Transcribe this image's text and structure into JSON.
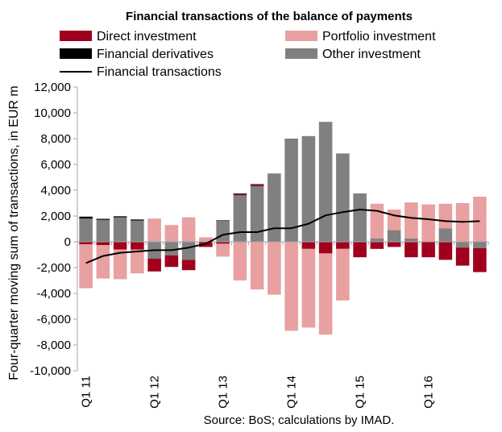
{
  "chart_data": {
    "type": "bar",
    "title": "Financial transactions of the balance of payments",
    "ylabel": "Four-quarter moving sum of transactions, in EUR m",
    "source": "Source: BoS; calculations by IMAD.",
    "ylim": [
      -10000,
      12000
    ],
    "y_ticks": [
      "12,000",
      "10,000",
      "8,000",
      "6,000",
      "4,000",
      "2,000",
      "0",
      "-2,000",
      "-4,000",
      "-6,000",
      "-8,000",
      "-10,000"
    ],
    "y_tick_values": [
      12000,
      10000,
      8000,
      6000,
      4000,
      2000,
      0,
      -2000,
      -4000,
      -6000,
      -8000,
      -10000
    ],
    "x_ticks": [
      {
        "label": "Q1 11",
        "index": 0
      },
      {
        "label": "Q1 12",
        "index": 4
      },
      {
        "label": "Q1 13",
        "index": 8
      },
      {
        "label": "Q1 14",
        "index": 12
      },
      {
        "label": "Q1 15",
        "index": 16
      },
      {
        "label": "Q1 16",
        "index": 20
      }
    ],
    "legend": [
      {
        "key": "direct",
        "label": "Direct investment",
        "kind": "box"
      },
      {
        "key": "portfolio",
        "label": "Portfolio investment",
        "kind": "box"
      },
      {
        "key": "derivatives",
        "label": "Financial derivatives",
        "kind": "box"
      },
      {
        "key": "other",
        "label": "Other investment",
        "kind": "box"
      },
      {
        "key": "total",
        "label": "Financial transactions",
        "kind": "line"
      }
    ],
    "colors": {
      "direct": "#a0001e",
      "portfolio": "#e8a0a0",
      "derivatives": "#000000",
      "other": "#808080",
      "total": "#000000",
      "axis": "#a6a6a6"
    },
    "stack_order": [
      "other",
      "direct",
      "portfolio",
      "derivatives"
    ],
    "series": [
      {
        "key": "direct",
        "name": "Direct investment",
        "values": [
          -200,
          -250,
          -600,
          -600,
          -1000,
          -900,
          -800,
          -400,
          -150,
          100,
          120,
          0,
          0,
          -550,
          -900,
          -550,
          -1200,
          -550,
          -400,
          -1200,
          -1200,
          -1400,
          -1400,
          -1850
        ]
      },
      {
        "key": "portfolio",
        "name": "Portfolio investment",
        "values": [
          -3400,
          -2600,
          -2300,
          -1850,
          1800,
          1300,
          1900,
          350,
          -1000,
          -3000,
          -3700,
          -4100,
          -6900,
          -6100,
          -6300,
          -4000,
          0,
          2700,
          1600,
          2800,
          2900,
          1900,
          3000,
          3500
        ]
      },
      {
        "key": "derivatives",
        "name": "Financial derivatives",
        "values": [
          150,
          80,
          80,
          80,
          0,
          0,
          0,
          0,
          30,
          50,
          50,
          0,
          30,
          0,
          0,
          0,
          0,
          0,
          0,
          0,
          0,
          0,
          0,
          0
        ]
      },
      {
        "key": "other",
        "name": "Other investment",
        "values": [
          1800,
          1700,
          1900,
          1650,
          -1300,
          -1050,
          -1400,
          0,
          1650,
          3600,
          4300,
          5300,
          7950,
          8200,
          9300,
          6850,
          3750,
          250,
          900,
          250,
          0,
          1050,
          -450,
          -500
        ]
      },
      {
        "key": "total",
        "name": "Financial transactions",
        "values": [
          -1650,
          -1100,
          -850,
          -750,
          -650,
          -650,
          -450,
          -150,
          550,
          750,
          750,
          1050,
          1050,
          1400,
          2050,
          2300,
          2500,
          2400,
          2050,
          1850,
          1750,
          1600,
          1550,
          1600
        ]
      }
    ]
  }
}
